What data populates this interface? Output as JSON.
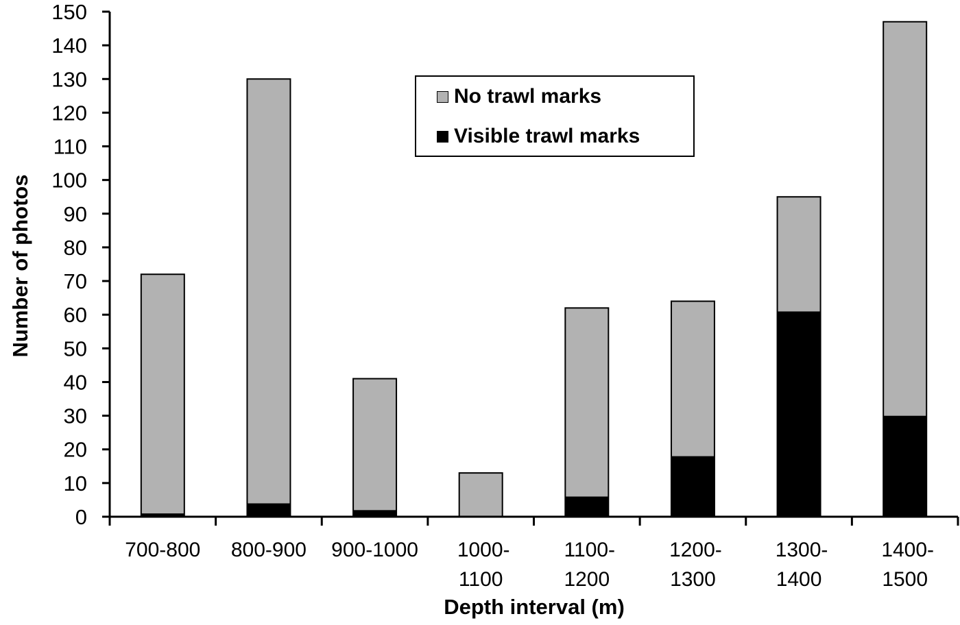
{
  "chart_data": {
    "type": "bar",
    "stacked": true,
    "title": "",
    "xlabel": "Depth interval (m)",
    "ylabel": "Number of photos",
    "ylim": [
      0,
      150
    ],
    "yticks": [
      0,
      10,
      20,
      30,
      40,
      50,
      60,
      70,
      80,
      90,
      100,
      110,
      120,
      130,
      140,
      150
    ],
    "categories": [
      "700-800",
      "800-900",
      "900-1000",
      "1000-\n1100",
      "1100-\n1200",
      "1200-\n1300",
      "1300-\n1400",
      "1400-\n1500"
    ],
    "category_lines": [
      [
        "700-800"
      ],
      [
        "800-900"
      ],
      [
        "900-1000"
      ],
      [
        "1000-",
        "1100"
      ],
      [
        "1100-",
        "1200"
      ],
      [
        "1200-",
        "1300"
      ],
      [
        "1300-",
        "1400"
      ],
      [
        "1400-",
        "1500"
      ]
    ],
    "series": [
      {
        "name": "Visible trawl marks",
        "color": "#000000",
        "values": [
          1,
          4,
          2,
          0,
          6,
          18,
          61,
          30
        ]
      },
      {
        "name": "No trawl marks",
        "color": "#b2b2b2",
        "values": [
          71,
          126,
          39,
          13,
          56,
          46,
          34,
          117
        ]
      }
    ],
    "totals": [
      72,
      130,
      41,
      13,
      62,
      64,
      95,
      147
    ],
    "legend_position": "top-center",
    "grid": false
  },
  "legend": {
    "items": [
      {
        "label": "No trawl marks",
        "color": "#b2b2b2"
      },
      {
        "label": "Visible trawl marks",
        "color": "#000000"
      }
    ]
  },
  "axes": {
    "xlabel": "Depth interval (m)",
    "ylabel": "Number of photos"
  }
}
